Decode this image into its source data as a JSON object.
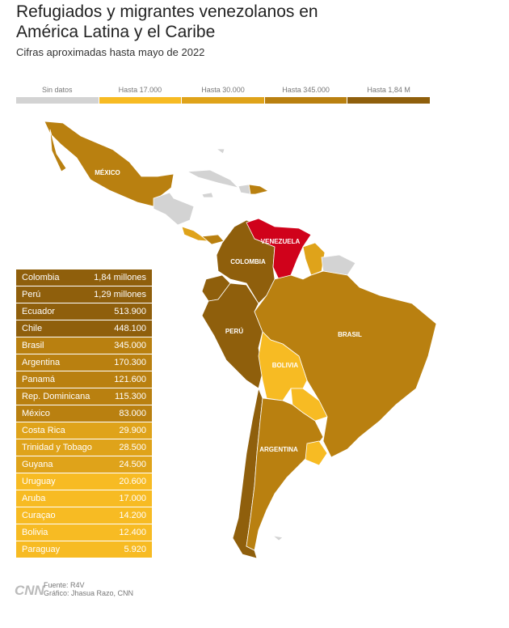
{
  "header": {
    "title": "Refugiados y migrantes venezolanos en América Latina y el Caribe",
    "subtitle": "Cifras aproximadas hasta mayo de 2022"
  },
  "legend": [
    {
      "label": "Sin datos",
      "color": "#d3d3d3"
    },
    {
      "label": "Hasta 17.000",
      "color": "#f7bb23"
    },
    {
      "label": "Hasta 30.000",
      "color": "#dfa31a"
    },
    {
      "label": "Hasta 345.000",
      "color": "#b98010"
    },
    {
      "label": "Hasta 1,84 M",
      "color": "#8f5f0c"
    }
  ],
  "map_labels": [
    "MÉXICO",
    "VENEZUELA",
    "COLOMBIA",
    "PERÚ",
    "BRASIL",
    "BOLIVIA",
    "ARGENTINA"
  ],
  "table": {
    "rows": [
      [
        "Colombia",
        "1,84 millones"
      ],
      [
        "Perú",
        "1,29 millones"
      ],
      [
        "Ecuador",
        "513.900"
      ],
      [
        "Chile",
        "448.100"
      ],
      [
        "Brasil",
        "345.000"
      ],
      [
        "Argentina",
        "170.300"
      ],
      [
        "Panamá",
        "121.600"
      ],
      [
        "Rep. Dominicana",
        "115.300"
      ],
      [
        "México",
        "83.000"
      ],
      [
        "Costa Rica",
        "29.900"
      ],
      [
        "Trinidad y Tobago",
        "28.500"
      ],
      [
        "Guyana",
        "24.500"
      ],
      [
        "Uruguay",
        "20.600"
      ],
      [
        "Aruba",
        "17.000"
      ],
      [
        "Curaçao",
        "14.200"
      ],
      [
        "Bolivia",
        "12.400"
      ],
      [
        "Paraguay",
        "5.920"
      ]
    ]
  },
  "footer": {
    "logo": "CNN",
    "source": "Fuente: R4V",
    "credit": "Gráfico: Jhasua Razo, CNN"
  }
}
